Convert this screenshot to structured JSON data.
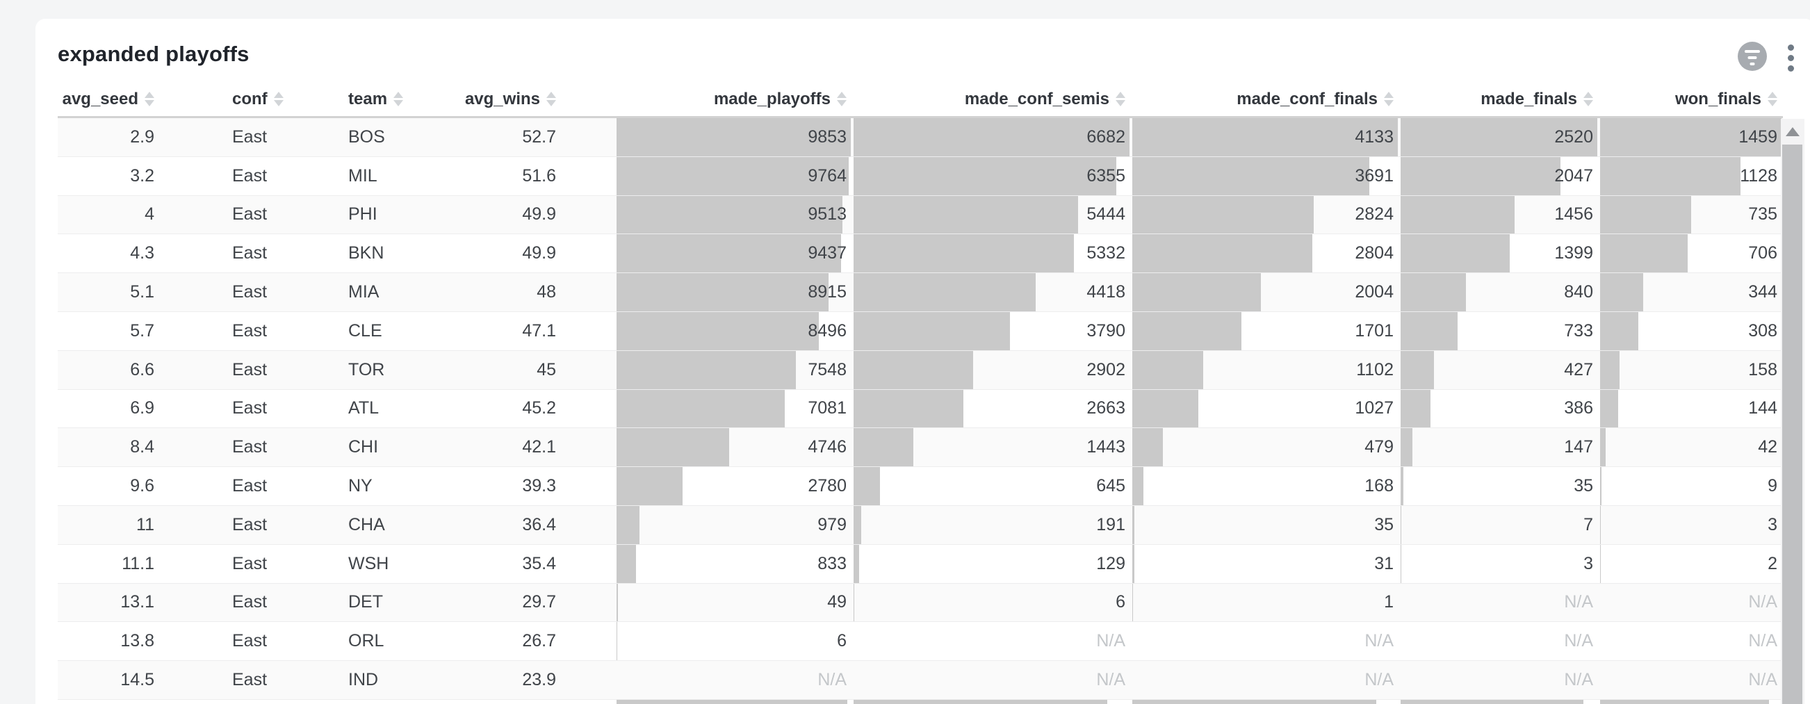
{
  "card": {
    "title": "expanded playoffs"
  },
  "toolbar": {
    "filter_button_label": "filter",
    "menu_button_label": "more options"
  },
  "table": {
    "na_text": "N/A",
    "columns": [
      {
        "key": "avg_seed",
        "label": "avg_seed"
      },
      {
        "key": "conf",
        "label": "conf"
      },
      {
        "key": "team",
        "label": "team"
      },
      {
        "key": "avg_wins",
        "label": "avg_wins"
      },
      {
        "key": "made_playoffs",
        "label": "made_playoffs"
      },
      {
        "key": "made_conf_semis",
        "label": "made_conf_semis"
      },
      {
        "key": "made_conf_finals",
        "label": "made_conf_finals"
      },
      {
        "key": "made_finals",
        "label": "made_finals"
      },
      {
        "key": "won_finals",
        "label": "won_finals"
      }
    ],
    "rows": [
      {
        "avg_seed": "2.9",
        "conf": "East",
        "team": "BOS",
        "avg_wins": "52.7",
        "made_playoffs": 9853,
        "made_conf_semis": 6682,
        "made_conf_finals": 4133,
        "made_finals": 2520,
        "won_finals": 1459
      },
      {
        "avg_seed": "3.2",
        "conf": "East",
        "team": "MIL",
        "avg_wins": "51.6",
        "made_playoffs": 9764,
        "made_conf_semis": 6355,
        "made_conf_finals": 3691,
        "made_finals": 2047,
        "won_finals": 1128
      },
      {
        "avg_seed": "4",
        "conf": "East",
        "team": "PHI",
        "avg_wins": "49.9",
        "made_playoffs": 9513,
        "made_conf_semis": 5444,
        "made_conf_finals": 2824,
        "made_finals": 1456,
        "won_finals": 735
      },
      {
        "avg_seed": "4.3",
        "conf": "East",
        "team": "BKN",
        "avg_wins": "49.9",
        "made_playoffs": 9437,
        "made_conf_semis": 5332,
        "made_conf_finals": 2804,
        "made_finals": 1399,
        "won_finals": 706
      },
      {
        "avg_seed": "5.1",
        "conf": "East",
        "team": "MIA",
        "avg_wins": "48",
        "made_playoffs": 8915,
        "made_conf_semis": 4418,
        "made_conf_finals": 2004,
        "made_finals": 840,
        "won_finals": 344
      },
      {
        "avg_seed": "5.7",
        "conf": "East",
        "team": "CLE",
        "avg_wins": "47.1",
        "made_playoffs": 8496,
        "made_conf_semis": 3790,
        "made_conf_finals": 1701,
        "made_finals": 733,
        "won_finals": 308
      },
      {
        "avg_seed": "6.6",
        "conf": "East",
        "team": "TOR",
        "avg_wins": "45",
        "made_playoffs": 7548,
        "made_conf_semis": 2902,
        "made_conf_finals": 1102,
        "made_finals": 427,
        "won_finals": 158
      },
      {
        "avg_seed": "6.9",
        "conf": "East",
        "team": "ATL",
        "avg_wins": "45.2",
        "made_playoffs": 7081,
        "made_conf_semis": 2663,
        "made_conf_finals": 1027,
        "made_finals": 386,
        "won_finals": 144
      },
      {
        "avg_seed": "8.4",
        "conf": "East",
        "team": "CHI",
        "avg_wins": "42.1",
        "made_playoffs": 4746,
        "made_conf_semis": 1443,
        "made_conf_finals": 479,
        "made_finals": 147,
        "won_finals": 42
      },
      {
        "avg_seed": "9.6",
        "conf": "East",
        "team": "NY",
        "avg_wins": "39.3",
        "made_playoffs": 2780,
        "made_conf_semis": 645,
        "made_conf_finals": 168,
        "made_finals": 35,
        "won_finals": 9
      },
      {
        "avg_seed": "11",
        "conf": "East",
        "team": "CHA",
        "avg_wins": "36.4",
        "made_playoffs": 979,
        "made_conf_semis": 191,
        "made_conf_finals": 35,
        "made_finals": 7,
        "won_finals": 3
      },
      {
        "avg_seed": "11.1",
        "conf": "East",
        "team": "WSH",
        "avg_wins": "35.4",
        "made_playoffs": 833,
        "made_conf_semis": 129,
        "made_conf_finals": 31,
        "made_finals": 3,
        "won_finals": 2
      },
      {
        "avg_seed": "13.1",
        "conf": "East",
        "team": "DET",
        "avg_wins": "29.7",
        "made_playoffs": 49,
        "made_conf_semis": 6,
        "made_conf_finals": 1,
        "made_finals": "N/A",
        "won_finals": "N/A"
      },
      {
        "avg_seed": "13.8",
        "conf": "East",
        "team": "ORL",
        "avg_wins": "26.7",
        "made_playoffs": 6,
        "made_conf_semis": "N/A",
        "made_conf_finals": "N/A",
        "made_finals": "N/A",
        "won_finals": "N/A"
      },
      {
        "avg_seed": "14.5",
        "conf": "East",
        "team": "IND",
        "avg_wins": "23.9",
        "made_playoffs": "N/A",
        "made_conf_semis": "N/A",
        "made_conf_finals": "N/A",
        "made_finals": "N/A",
        "won_finals": "N/A"
      }
    ],
    "partial_next_row_bar_fractions": {
      "made_playoffs": 0.985,
      "made_conf_semis": 0.92,
      "made_conf_finals": 0.92,
      "made_finals": 0.93,
      "won_finals": 0.93
    }
  },
  "colors": {
    "bar": "#c9c9c9",
    "na_text": "#c4c7ca",
    "page_background": "#f4f5f6",
    "card_background": "#ffffff",
    "row_stripe": "#fafafa"
  }
}
